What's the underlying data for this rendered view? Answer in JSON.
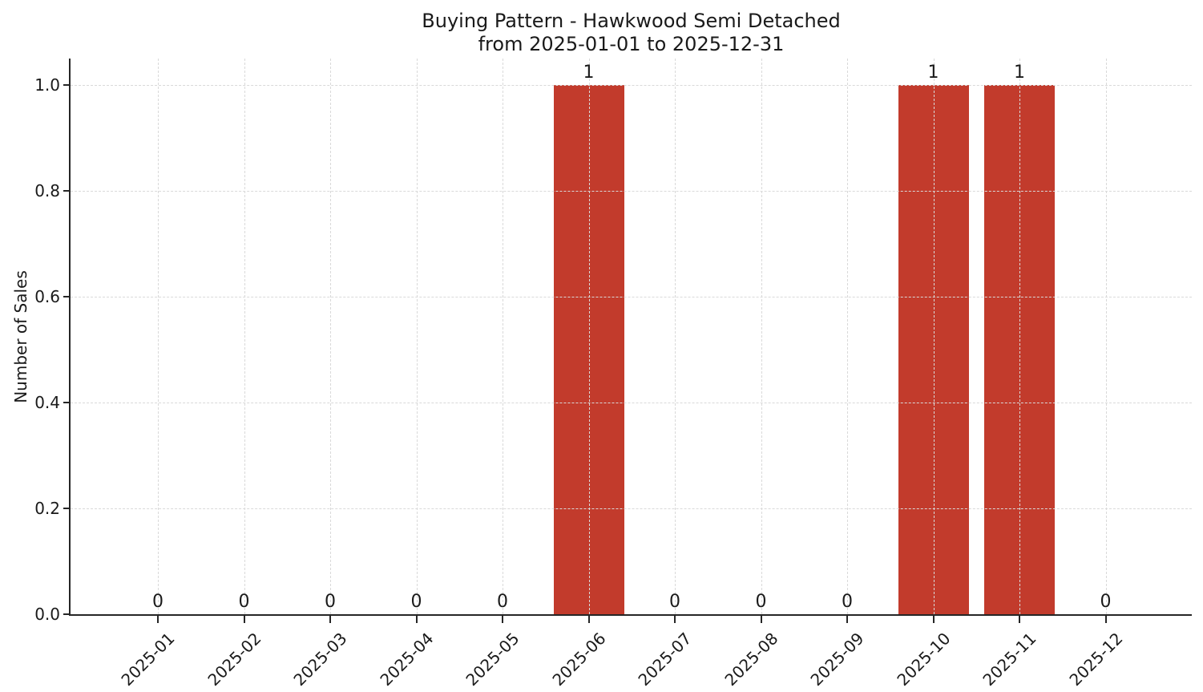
{
  "chart_data": {
    "type": "bar",
    "title": "Buying Pattern - Hawkwood Semi Detached",
    "subtitle": "from 2025-01-01 to 2025-12-31",
    "xlabel": "",
    "ylabel": "Number of Sales",
    "categories": [
      "2025-01",
      "2025-02",
      "2025-03",
      "2025-04",
      "2025-05",
      "2025-06",
      "2025-07",
      "2025-08",
      "2025-09",
      "2025-10",
      "2025-11",
      "2025-12"
    ],
    "values": [
      0,
      0,
      0,
      0,
      0,
      1,
      0,
      0,
      0,
      1,
      1,
      0
    ],
    "bar_labels": [
      "0",
      "0",
      "0",
      "0",
      "0",
      "1",
      "0",
      "0",
      "0",
      "1",
      "1",
      "0"
    ],
    "yticks": [
      0.0,
      0.2,
      0.4,
      0.6,
      0.8,
      1.0
    ],
    "ytick_labels": [
      "0.0",
      "0.2",
      "0.4",
      "0.6",
      "0.8",
      "1.0"
    ],
    "ylim": [
      0,
      1.05
    ],
    "bar_color": "#c23b2c",
    "grid": "dashed",
    "grid_color": "#d9d9d9",
    "axis_color": "#262626",
    "text_color": "#1a1a1a",
    "x_tick_rotation": 45,
    "legend": "none"
  }
}
